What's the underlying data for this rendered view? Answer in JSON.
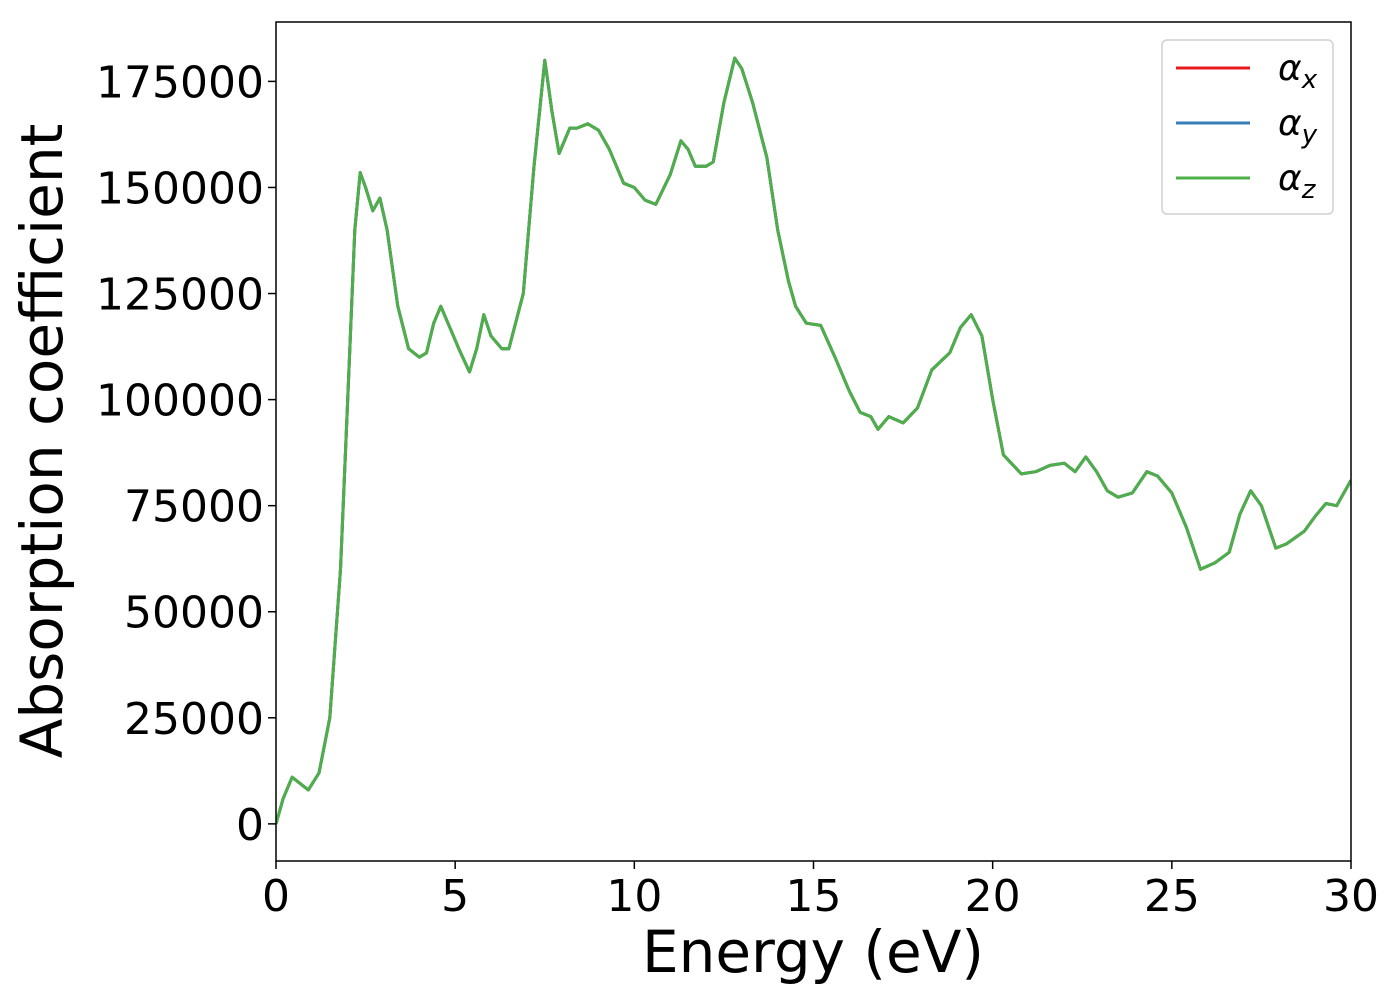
{
  "chart_data": {
    "type": "line",
    "xlabel": "Energy (eV)",
    "ylabel": "Absorption coefficient",
    "x": [
      0,
      0.2,
      0.45,
      0.6,
      0.9,
      1.2,
      1.5,
      1.8,
      2.0,
      2.2,
      2.35,
      2.5,
      2.7,
      2.9,
      3.1,
      3.4,
      3.7,
      4.0,
      4.2,
      4.4,
      4.6,
      4.9,
      5.1,
      5.4,
      5.6,
      5.8,
      6.0,
      6.3,
      6.5,
      6.9,
      7.2,
      7.5,
      7.7,
      7.9,
      8.2,
      8.4,
      8.7,
      9.0,
      9.3,
      9.7,
      10.0,
      10.3,
      10.6,
      11.0,
      11.3,
      11.5,
      11.7,
      12.0,
      12.2,
      12.5,
      12.8,
      13.0,
      13.3,
      13.7,
      14.0,
      14.3,
      14.5,
      14.8,
      15.2,
      15.6,
      16.0,
      16.3,
      16.6,
      16.8,
      17.1,
      17.5,
      17.9,
      18.3,
      18.8,
      19.1,
      19.4,
      19.7,
      20.0,
      20.3,
      20.8,
      21.2,
      21.6,
      22.0,
      22.3,
      22.6,
      22.9,
      23.2,
      23.5,
      23.9,
      24.3,
      24.6,
      25.0,
      25.4,
      25.8,
      26.2,
      26.6,
      26.9,
      27.2,
      27.5,
      27.9,
      28.2,
      28.7,
      29.0,
      29.3,
      29.6,
      30.0
    ],
    "series": [
      {
        "name": "αx",
        "color": "#e41a1c",
        "values": [
          0,
          6000,
          11000,
          10000,
          8000,
          12000,
          25000,
          60000,
          100000,
          140000,
          153500,
          150000,
          144500,
          147500,
          140000,
          122000,
          112000,
          110000,
          111000,
          118000,
          122000,
          116000,
          112000,
          106500,
          112000,
          120000,
          115000,
          112000,
          112000,
          125000,
          155000,
          180000,
          168000,
          158000,
          164000,
          164000,
          165000,
          163500,
          159000,
          151000,
          150000,
          147000,
          146000,
          153000,
          161000,
          159000,
          155000,
          155000,
          156000,
          170000,
          180500,
          178000,
          170000,
          157000,
          140000,
          128000,
          122000,
          118000,
          117500,
          110000,
          102000,
          97000,
          96000,
          93000,
          96000,
          94500,
          98000,
          107000,
          111000,
          117000,
          120000,
          115000,
          100000,
          87000,
          82500,
          83000,
          84500,
          85000,
          83000,
          86500,
          83000,
          78500,
          77000,
          78000,
          83000,
          82000,
          78000,
          70000,
          60000,
          61500,
          64000,
          73000,
          78500,
          75000,
          65000,
          66000,
          69000,
          72500,
          75500,
          75000,
          81000
        ]
      },
      {
        "name": "αy",
        "color": "#377eb8",
        "values": [
          0,
          6000,
          11000,
          10000,
          8000,
          12000,
          25000,
          60000,
          100000,
          140000,
          153500,
          150000,
          144500,
          147500,
          140000,
          122000,
          112000,
          110000,
          111000,
          118000,
          122000,
          116000,
          112000,
          106500,
          112000,
          120000,
          115000,
          112000,
          112000,
          125000,
          155000,
          180000,
          168000,
          158000,
          164000,
          164000,
          165000,
          163500,
          159000,
          151000,
          150000,
          147000,
          146000,
          153000,
          161000,
          159000,
          155000,
          155000,
          156000,
          170000,
          180500,
          178000,
          170000,
          157000,
          140000,
          128000,
          122000,
          118000,
          117500,
          110000,
          102000,
          97000,
          96000,
          93000,
          96000,
          94500,
          98000,
          107000,
          111000,
          117000,
          120000,
          115000,
          100000,
          87000,
          82500,
          83000,
          84500,
          85000,
          83000,
          86500,
          83000,
          78500,
          77000,
          78000,
          83000,
          82000,
          78000,
          70000,
          60000,
          61500,
          64000,
          73000,
          78500,
          75000,
          65000,
          66000,
          69000,
          72500,
          75500,
          75000,
          81000
        ]
      },
      {
        "name": "αz",
        "color": "#4daf4a",
        "values": [
          0,
          6000,
          11000,
          10000,
          8000,
          12000,
          25000,
          60000,
          100000,
          140000,
          153500,
          150000,
          144500,
          147500,
          140000,
          122000,
          112000,
          110000,
          111000,
          118000,
          122000,
          116000,
          112000,
          106500,
          112000,
          120000,
          115000,
          112000,
          112000,
          125000,
          155000,
          180000,
          168000,
          158000,
          164000,
          164000,
          165000,
          163500,
          159000,
          151000,
          150000,
          147000,
          146000,
          153000,
          161000,
          159000,
          155000,
          155000,
          156000,
          170000,
          180500,
          178000,
          170000,
          157000,
          140000,
          128000,
          122000,
          118000,
          117500,
          110000,
          102000,
          97000,
          96000,
          93000,
          96000,
          94500,
          98000,
          107000,
          111000,
          117000,
          120000,
          115000,
          100000,
          87000,
          82500,
          83000,
          84500,
          85000,
          83000,
          86500,
          83000,
          78500,
          77000,
          78000,
          83000,
          82000,
          78000,
          70000,
          60000,
          61500,
          64000,
          73000,
          78500,
          75000,
          65000,
          66000,
          69000,
          72500,
          75500,
          75000,
          81000
        ]
      }
    ],
    "xlim": [
      0,
      30
    ],
    "xticks": [
      0,
      5,
      10,
      15,
      20,
      25,
      30
    ],
    "ylim": [
      -8750,
      189000
    ],
    "yticks": [
      0,
      25000,
      50000,
      75000,
      100000,
      125000,
      150000,
      175000
    ],
    "legend": "upper right",
    "grid": false
  }
}
